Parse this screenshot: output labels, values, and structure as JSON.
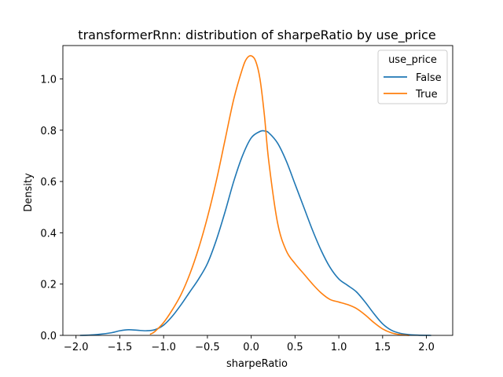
{
  "chart_data": {
    "type": "line",
    "title": "transformerRnn: distribution of sharpeRatio by use_price",
    "xlabel": "sharpeRatio",
    "ylabel": "Density",
    "xlim": [
      -2.15,
      2.3
    ],
    "ylim": [
      0,
      1.13
    ],
    "xticks": [
      -2.0,
      -1.5,
      -1.0,
      -0.5,
      0.0,
      0.5,
      1.0,
      1.5,
      2.0
    ],
    "xtick_labels": [
      "−2.0",
      "−1.5",
      "−1.0",
      "−0.5",
      "0.0",
      "0.5",
      "1.0",
      "1.5",
      "2.0"
    ],
    "yticks": [
      0.0,
      0.2,
      0.4,
      0.6,
      0.8,
      1.0
    ],
    "ytick_labels": [
      "0.0",
      "0.2",
      "0.4",
      "0.6",
      "0.8",
      "1.0"
    ],
    "grid": false,
    "legend": {
      "title": "use_price",
      "position": "top-right"
    },
    "series": [
      {
        "name": "False",
        "color": "#1f77b4",
        "x": [
          -1.95,
          -1.8,
          -1.6,
          -1.5,
          -1.4,
          -1.3,
          -1.2,
          -1.1,
          -1.0,
          -0.9,
          -0.8,
          -0.7,
          -0.6,
          -0.5,
          -0.4,
          -0.3,
          -0.2,
          -0.1,
          0.0,
          0.1,
          0.15,
          0.2,
          0.3,
          0.4,
          0.5,
          0.6,
          0.7,
          0.8,
          0.9,
          1.0,
          1.1,
          1.2,
          1.3,
          1.4,
          1.5,
          1.6,
          1.7,
          1.8,
          1.9,
          2.05
        ],
        "y": [
          0.0,
          0.002,
          0.01,
          0.018,
          0.022,
          0.02,
          0.018,
          0.022,
          0.04,
          0.075,
          0.12,
          0.17,
          0.22,
          0.28,
          0.37,
          0.48,
          0.6,
          0.7,
          0.77,
          0.795,
          0.797,
          0.79,
          0.75,
          0.68,
          0.59,
          0.5,
          0.41,
          0.33,
          0.265,
          0.22,
          0.195,
          0.17,
          0.13,
          0.085,
          0.045,
          0.02,
          0.008,
          0.003,
          0.001,
          0.0
        ]
      },
      {
        "name": "True",
        "color": "#ff7f0e",
        "x": [
          -1.15,
          -1.1,
          -1.0,
          -0.9,
          -0.8,
          -0.7,
          -0.6,
          -0.5,
          -0.4,
          -0.3,
          -0.2,
          -0.1,
          -0.05,
          0.0,
          0.05,
          0.1,
          0.15,
          0.2,
          0.3,
          0.4,
          0.5,
          0.6,
          0.7,
          0.8,
          0.9,
          1.0,
          1.1,
          1.2,
          1.3,
          1.4,
          1.5,
          1.6,
          1.7,
          1.8
        ],
        "y": [
          0.005,
          0.015,
          0.05,
          0.1,
          0.16,
          0.24,
          0.34,
          0.46,
          0.6,
          0.76,
          0.92,
          1.04,
          1.08,
          1.09,
          1.07,
          1.0,
          0.86,
          0.68,
          0.44,
          0.33,
          0.28,
          0.24,
          0.2,
          0.165,
          0.14,
          0.13,
          0.12,
          0.105,
          0.08,
          0.05,
          0.025,
          0.01,
          0.003,
          0.0
        ]
      }
    ]
  }
}
